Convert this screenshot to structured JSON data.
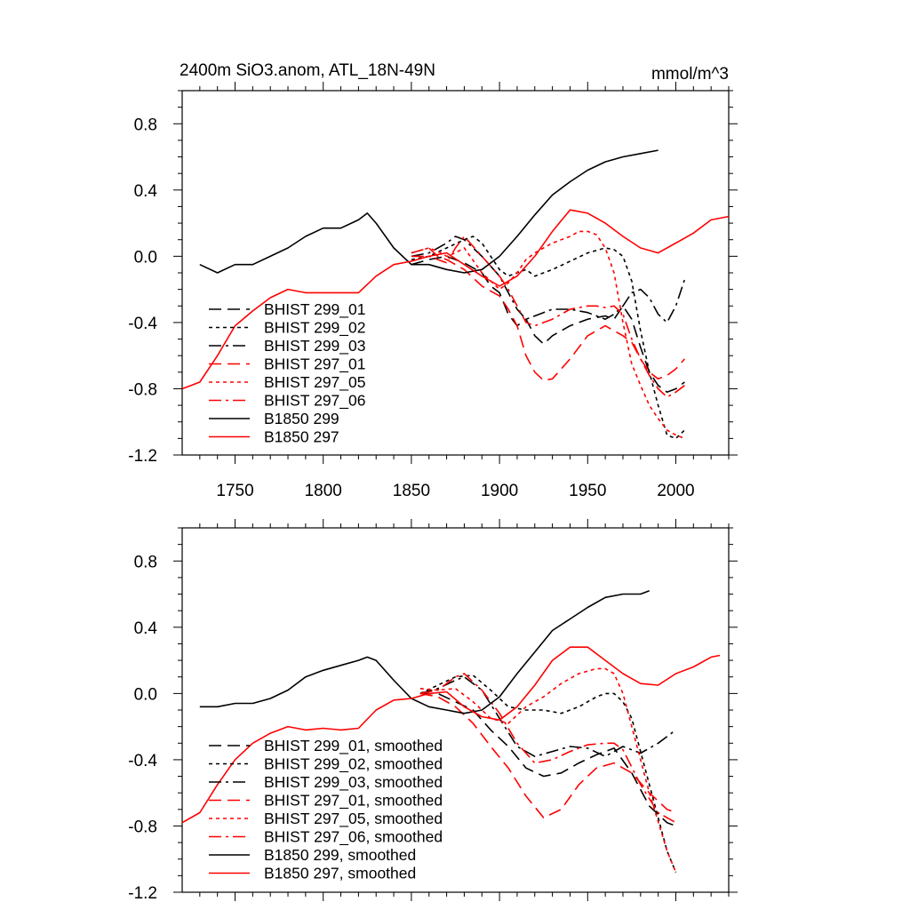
{
  "chart_data": [
    {
      "type": "line",
      "title": "2400m SiO3.anom, ATL_18N-49N",
      "units": "mmol/m^3",
      "xlim": [
        1720,
        2030
      ],
      "ylim": [
        -1.2,
        1.0
      ],
      "x_ticks": [
        "1750",
        "1800",
        "1850",
        "1900",
        "1950",
        "2000"
      ],
      "y_ticks": [
        "0.8",
        "0.4",
        "0.0",
        "-0.4",
        "-0.8",
        "-1.2"
      ],
      "legend_position": "lower-left",
      "series": [
        {
          "name": "BHIST 299_01",
          "color": "#000000",
          "dash": "dash",
          "x": [
            1850,
            1860,
            1870,
            1880,
            1890,
            1895,
            1900,
            1905,
            1910,
            1915,
            1920,
            1925,
            1930,
            1940,
            1950,
            1960,
            1965,
            1970,
            1975,
            1980,
            1985,
            1990,
            1995,
            2000,
            2005
          ],
          "y": [
            -0.05,
            -0.02,
            0.0,
            -0.04,
            -0.1,
            -0.18,
            -0.22,
            -0.35,
            -0.42,
            -0.38,
            -0.48,
            -0.53,
            -0.48,
            -0.42,
            -0.38,
            -0.36,
            -0.38,
            -0.3,
            -0.38,
            -0.55,
            -0.7,
            -0.78,
            -0.82,
            -0.8,
            -0.76
          ]
        },
        {
          "name": "BHIST 299_02",
          "color": "#000000",
          "dash": "dot",
          "x": [
            1850,
            1860,
            1870,
            1880,
            1885,
            1890,
            1895,
            1900,
            1905,
            1910,
            1915,
            1920,
            1930,
            1940,
            1950,
            1960,
            1965,
            1970,
            1975,
            1980,
            1985,
            1990,
            1995,
            2000,
            2005
          ],
          "y": [
            -0.02,
            0.0,
            0.05,
            0.1,
            0.12,
            0.08,
            0.0,
            -0.08,
            -0.12,
            -0.1,
            -0.08,
            -0.12,
            -0.08,
            -0.03,
            0.02,
            0.05,
            0.04,
            0.0,
            -0.15,
            -0.45,
            -0.7,
            -0.9,
            -1.08,
            -1.1,
            -1.05
          ]
        },
        {
          "name": "BHIST 299_03",
          "color": "#000000",
          "dash": "dashdot",
          "x": [
            1850,
            1860,
            1870,
            1875,
            1880,
            1890,
            1900,
            1905,
            1910,
            1915,
            1920,
            1925,
            1930,
            1940,
            1950,
            1960,
            1965,
            1970,
            1975,
            1980,
            1985,
            1990,
            1995,
            2000,
            2005
          ],
          "y": [
            0.0,
            0.02,
            0.08,
            0.12,
            0.1,
            0.0,
            -0.12,
            -0.22,
            -0.32,
            -0.38,
            -0.36,
            -0.34,
            -0.32,
            -0.32,
            -0.34,
            -0.38,
            -0.35,
            -0.3,
            -0.22,
            -0.2,
            -0.25,
            -0.35,
            -0.4,
            -0.3,
            -0.14
          ]
        },
        {
          "name": "BHIST 297_01",
          "color": "#ff0000",
          "dash": "dash",
          "x": [
            1850,
            1860,
            1865,
            1870,
            1880,
            1890,
            1900,
            1905,
            1910,
            1915,
            1920,
            1925,
            1930,
            1940,
            1950,
            1960,
            1965,
            1970,
            1975,
            1980,
            1985,
            1990,
            1995,
            2000,
            2005
          ],
          "y": [
            0.02,
            0.05,
            0.0,
            -0.02,
            -0.08,
            -0.18,
            -0.24,
            -0.32,
            -0.42,
            -0.6,
            -0.7,
            -0.75,
            -0.74,
            -0.62,
            -0.48,
            -0.42,
            -0.45,
            -0.48,
            -0.52,
            -0.62,
            -0.7,
            -0.74,
            -0.72,
            -0.68,
            -0.62
          ]
        },
        {
          "name": "BHIST 297_05",
          "color": "#ff0000",
          "dash": "dot",
          "x": [
            1850,
            1860,
            1865,
            1870,
            1875,
            1880,
            1890,
            1900,
            1905,
            1910,
            1915,
            1920,
            1925,
            1930,
            1940,
            1945,
            1950,
            1955,
            1960,
            1965,
            1970,
            1975,
            1980,
            1985,
            1990,
            1995,
            2000,
            2005
          ],
          "y": [
            0.02,
            0.05,
            0.03,
            0.0,
            0.02,
            0.05,
            -0.1,
            -0.2,
            -0.16,
            -0.1,
            -0.02,
            0.02,
            0.05,
            0.08,
            0.12,
            0.15,
            0.15,
            0.13,
            0.05,
            -0.1,
            -0.4,
            -0.65,
            -0.78,
            -0.9,
            -0.98,
            -1.05,
            -1.08,
            -1.1
          ]
        },
        {
          "name": "BHIST 297_06",
          "color": "#ff0000",
          "dash": "dashdot",
          "x": [
            1850,
            1860,
            1870,
            1875,
            1880,
            1890,
            1900,
            1905,
            1910,
            1915,
            1920,
            1925,
            1930,
            1940,
            1950,
            1955,
            1960,
            1965,
            1970,
            1975,
            1980,
            1985,
            1990,
            1995,
            2000,
            2005
          ],
          "y": [
            0.0,
            0.0,
            -0.04,
            0.05,
            0.12,
            0.0,
            -0.12,
            -0.2,
            -0.3,
            -0.4,
            -0.42,
            -0.4,
            -0.38,
            -0.32,
            -0.3,
            -0.3,
            -0.31,
            -0.3,
            -0.35,
            -0.5,
            -0.62,
            -0.72,
            -0.8,
            -0.85,
            -0.82,
            -0.78
          ]
        },
        {
          "name": "B1850 299",
          "color": "#000000",
          "dash": "solid",
          "x": [
            1730,
            1740,
            1750,
            1760,
            1770,
            1780,
            1790,
            1800,
            1810,
            1820,
            1825,
            1830,
            1840,
            1850,
            1860,
            1870,
            1880,
            1890,
            1900,
            1910,
            1920,
            1930,
            1940,
            1950,
            1960,
            1970,
            1980,
            1990
          ],
          "y": [
            -0.05,
            -0.1,
            -0.05,
            -0.05,
            0.0,
            0.05,
            0.12,
            0.17,
            0.17,
            0.22,
            0.26,
            0.2,
            0.05,
            -0.05,
            -0.05,
            -0.08,
            -0.1,
            -0.08,
            0.0,
            0.12,
            0.25,
            0.37,
            0.45,
            0.52,
            0.57,
            0.6,
            0.62,
            0.64
          ]
        },
        {
          "name": "B1850 297",
          "color": "#ff0000",
          "dash": "solid",
          "x": [
            1720,
            1730,
            1740,
            1750,
            1760,
            1770,
            1780,
            1790,
            1800,
            1810,
            1820,
            1830,
            1840,
            1850,
            1860,
            1870,
            1880,
            1890,
            1900,
            1910,
            1920,
            1930,
            1940,
            1950,
            1960,
            1970,
            1980,
            1990,
            2000,
            2010,
            2020,
            2030
          ],
          "y": [
            -0.8,
            -0.76,
            -0.6,
            -0.42,
            -0.33,
            -0.25,
            -0.2,
            -0.22,
            -0.22,
            -0.22,
            -0.22,
            -0.12,
            -0.05,
            -0.03,
            0.0,
            0.02,
            -0.05,
            -0.12,
            -0.18,
            -0.12,
            0.0,
            0.15,
            0.28,
            0.26,
            0.2,
            0.12,
            0.05,
            0.02,
            0.08,
            0.14,
            0.22,
            0.24
          ]
        }
      ]
    },
    {
      "type": "line",
      "title": "",
      "units": "",
      "xlim": [
        1720,
        2030
      ],
      "ylim": [
        -1.2,
        1.0
      ],
      "x_ticks": [],
      "y_ticks": [
        "0.8",
        "0.4",
        "0.0",
        "-0.4",
        "-0.8",
        "-1.2"
      ],
      "legend_position": "lower-left",
      "series": [
        {
          "name": "BHIST 299_01, smoothed",
          "color": "#000000",
          "dash": "dash",
          "x": [
            1855,
            1865,
            1875,
            1885,
            1895,
            1905,
            1915,
            1925,
            1935,
            1945,
            1955,
            1965,
            1975,
            1985,
            1995,
            2000
          ],
          "y": [
            0.0,
            0.0,
            -0.05,
            -0.1,
            -0.22,
            -0.32,
            -0.45,
            -0.5,
            -0.48,
            -0.42,
            -0.37,
            -0.33,
            -0.48,
            -0.68,
            -0.78,
            -0.8
          ]
        },
        {
          "name": "BHIST 299_02, smoothed",
          "color": "#000000",
          "dash": "dot",
          "x": [
            1855,
            1865,
            1875,
            1885,
            1895,
            1905,
            1915,
            1925,
            1935,
            1945,
            1955,
            1960,
            1965,
            1970,
            1975,
            1985,
            1995,
            2000
          ],
          "y": [
            0.0,
            0.05,
            0.1,
            0.11,
            0.02,
            -0.08,
            -0.1,
            -0.1,
            -0.12,
            -0.08,
            -0.02,
            0.0,
            0.0,
            -0.05,
            -0.15,
            -0.55,
            -0.95,
            -1.08
          ]
        },
        {
          "name": "BHIST 299_03, smoothed",
          "color": "#000000",
          "dash": "dashdot",
          "x": [
            1855,
            1865,
            1875,
            1880,
            1890,
            1900,
            1910,
            1920,
            1930,
            1940,
            1950,
            1960,
            1970,
            1980,
            1990,
            2000
          ],
          "y": [
            0.0,
            0.03,
            0.08,
            0.1,
            0.02,
            -0.15,
            -0.32,
            -0.38,
            -0.35,
            -0.32,
            -0.33,
            -0.38,
            -0.32,
            -0.36,
            -0.3,
            -0.22
          ]
        },
        {
          "name": "BHIST 297_01, smoothed",
          "color": "#ff0000",
          "dash": "dash",
          "x": [
            1855,
            1865,
            1875,
            1885,
            1895,
            1905,
            1915,
            1925,
            1935,
            1945,
            1955,
            1965,
            1975,
            1985,
            1995,
            2000
          ],
          "y": [
            0.0,
            -0.02,
            -0.08,
            -0.18,
            -0.32,
            -0.45,
            -0.62,
            -0.75,
            -0.7,
            -0.55,
            -0.45,
            -0.42,
            -0.48,
            -0.6,
            -0.7,
            -0.72
          ]
        },
        {
          "name": "BHIST 297_05, smoothed",
          "color": "#ff0000",
          "dash": "dot",
          "x": [
            1855,
            1865,
            1875,
            1885,
            1895,
            1905,
            1915,
            1925,
            1935,
            1945,
            1955,
            1960,
            1965,
            1970,
            1975,
            1985,
            1995,
            2000
          ],
          "y": [
            0.03,
            0.02,
            0.03,
            -0.05,
            -0.15,
            -0.18,
            -0.08,
            -0.02,
            0.06,
            0.12,
            0.15,
            0.15,
            0.12,
            0.0,
            -0.2,
            -0.6,
            -0.95,
            -1.08
          ]
        },
        {
          "name": "BHIST 297_06, smoothed",
          "color": "#ff0000",
          "dash": "dashdot",
          "x": [
            1855,
            1865,
            1875,
            1880,
            1890,
            1900,
            1910,
            1920,
            1930,
            1940,
            1950,
            1960,
            1965,
            1970,
            1980,
            1990,
            2000
          ],
          "y": [
            0.0,
            0.02,
            0.1,
            0.12,
            0.02,
            -0.12,
            -0.3,
            -0.42,
            -0.4,
            -0.35,
            -0.31,
            -0.3,
            -0.3,
            -0.34,
            -0.55,
            -0.72,
            -0.78
          ]
        },
        {
          "name": "B1850 299, smoothed",
          "color": "#000000",
          "dash": "solid",
          "x": [
            1730,
            1740,
            1750,
            1760,
            1770,
            1780,
            1790,
            1800,
            1810,
            1820,
            1825,
            1830,
            1840,
            1850,
            1860,
            1870,
            1880,
            1890,
            1900,
            1910,
            1920,
            1930,
            1940,
            1950,
            1960,
            1970,
            1980,
            1985
          ],
          "y": [
            -0.08,
            -0.08,
            -0.06,
            -0.06,
            -0.03,
            0.02,
            0.1,
            0.14,
            0.17,
            0.2,
            0.22,
            0.2,
            0.08,
            -0.03,
            -0.08,
            -0.1,
            -0.12,
            -0.1,
            -0.02,
            0.12,
            0.25,
            0.38,
            0.45,
            0.52,
            0.58,
            0.6,
            0.6,
            0.62
          ]
        },
        {
          "name": "B1850 297, smoothed",
          "color": "#ff0000",
          "dash": "solid",
          "x": [
            1720,
            1730,
            1740,
            1750,
            1760,
            1770,
            1780,
            1790,
            1800,
            1810,
            1820,
            1830,
            1840,
            1850,
            1860,
            1870,
            1880,
            1890,
            1900,
            1910,
            1920,
            1930,
            1940,
            1950,
            1960,
            1970,
            1980,
            1990,
            2000,
            2010,
            2020,
            2025
          ],
          "y": [
            -0.78,
            -0.72,
            -0.55,
            -0.4,
            -0.3,
            -0.24,
            -0.2,
            -0.22,
            -0.21,
            -0.22,
            -0.21,
            -0.1,
            -0.04,
            -0.03,
            0.0,
            0.01,
            -0.08,
            -0.14,
            -0.16,
            -0.08,
            0.05,
            0.2,
            0.28,
            0.28,
            0.2,
            0.12,
            0.06,
            0.05,
            0.12,
            0.16,
            0.22,
            0.23
          ]
        }
      ]
    }
  ]
}
